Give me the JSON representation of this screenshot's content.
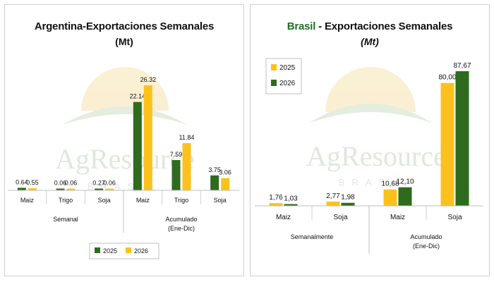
{
  "colors": {
    "green": "#2e6b1e",
    "yellow": "#fcc21b",
    "brasil_brand": "#1e6f25",
    "watermark": "#c8d5c2",
    "watermark_sun": "#f6e3b0"
  },
  "watermark": {
    "text": "AgResource",
    "sub": "BRASIL"
  },
  "argentina": {
    "title": "Argentina-Exportaciones Semanales",
    "unit": "(Mt)"
  },
  "brasil": {
    "title_brand": "Brasil",
    "title_rest": " - Exportaciones Semanales",
    "unit": "(Mt)"
  },
  "chart_data": [
    {
      "type": "bar",
      "title": "Argentina-Exportaciones Semanales",
      "subtitle": "(Mt)",
      "categories": [
        "Maiz",
        "Trigo",
        "Soja",
        "Maiz",
        "Trigo",
        "Soja"
      ],
      "groups": [
        {
          "label": "Semanal",
          "categories": [
            "Maiz",
            "Trigo",
            "Soja"
          ]
        },
        {
          "label": "Acumulado\n(Ene-Dic)",
          "categories": [
            "Maiz",
            "Trigo",
            "Soja"
          ]
        }
      ],
      "series": [
        {
          "name": "2025",
          "color": "#2e6b1e",
          "values": [
            0.64,
            0.06,
            0.27,
            22.14,
            7.59,
            3.75
          ],
          "labels": [
            "0.64",
            "0.06",
            "0.27",
            "22.14",
            "7.59",
            "3.75"
          ]
        },
        {
          "name": "2026",
          "color": "#fcc21b",
          "values": [
            0.55,
            0.06,
            0.06,
            26.32,
            11.84,
            3.06
          ],
          "labels": [
            "0.55",
            "0.06",
            "0.06",
            "26.32",
            "11.84",
            "3.06"
          ]
        }
      ],
      "legend": "bottom",
      "grid": false
    },
    {
      "type": "bar",
      "title": "Brasil - Exportaciones Semanales",
      "subtitle": "(Mt)",
      "categories": [
        "Maiz",
        "Soja",
        "Maiz",
        "Soja"
      ],
      "groups": [
        {
          "label": "Semanalmente",
          "categories": [
            "Maiz",
            "Soja"
          ]
        },
        {
          "label": "Acumulado\n(Ene-Dic)",
          "categories": [
            "Maiz",
            "Soja"
          ]
        }
      ],
      "series": [
        {
          "name": "2025",
          "color": "#fcc21b",
          "values": [
            1.76,
            2.77,
            10.68,
            80.0
          ],
          "labels": [
            "1,76",
            "2,77",
            "10,68",
            "80,00"
          ]
        },
        {
          "name": "2026",
          "color": "#2e6b1e",
          "values": [
            1.03,
            1.98,
            12.1,
            87.67
          ],
          "labels": [
            "1,03",
            "1,98",
            "12,10",
            "87,67"
          ]
        }
      ],
      "legend": "top-left",
      "grid": false
    }
  ]
}
